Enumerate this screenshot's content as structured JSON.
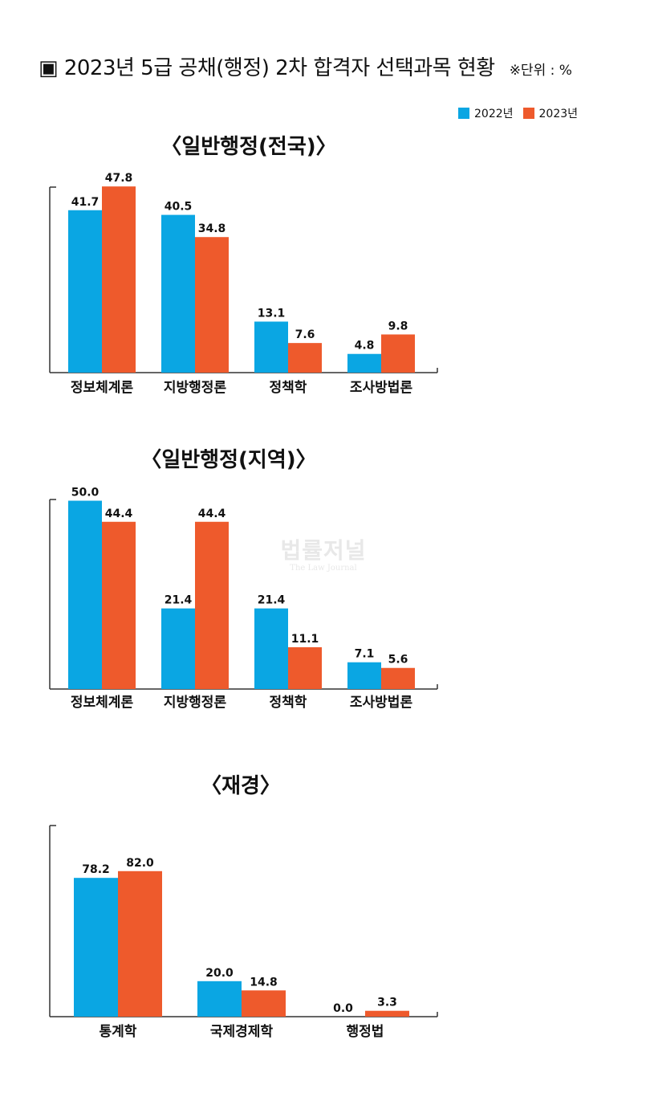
{
  "header": {
    "title": "▣ 2023년 5급 공채(행정) 2차 합격자 선택과목 현황",
    "unit": "※단위 : %"
  },
  "legend": [
    {
      "label": "2022년",
      "color": "#0aa6e3"
    },
    {
      "label": "2023년",
      "color": "#ee5a2c"
    }
  ],
  "watermark": {
    "korean": "법률저널",
    "english": "The Law Journal"
  },
  "chart_data": [
    {
      "type": "bar",
      "title": "〈일반행정(전국)〉",
      "categories": [
        "정보체계론",
        "지방행정론",
        "정책학",
        "조사방법론"
      ],
      "series": [
        {
          "name": "2022년",
          "values": [
            41.7,
            40.5,
            13.1,
            4.8
          ]
        },
        {
          "name": "2023년",
          "values": [
            47.8,
            34.8,
            7.6,
            9.8
          ]
        }
      ],
      "ylim": [
        0,
        50
      ],
      "grid": false
    },
    {
      "type": "bar",
      "title": "〈일반행정(지역)〉",
      "categories": [
        "정보체계론",
        "지방행정론",
        "정책학",
        "조사방법론"
      ],
      "series": [
        {
          "name": "2022년",
          "values": [
            50.0,
            21.4,
            21.4,
            7.1
          ]
        },
        {
          "name": "2023년",
          "values": [
            44.4,
            44.4,
            11.1,
            5.6
          ]
        }
      ],
      "ylim": [
        0,
        50
      ],
      "grid": false
    },
    {
      "type": "bar",
      "title": "〈재경〉",
      "categories": [
        "통계학",
        "국제경제학",
        "행정법"
      ],
      "series": [
        {
          "name": "2022년",
          "values": [
            78.2,
            20.0,
            0.0
          ]
        },
        {
          "name": "2023년",
          "values": [
            82.0,
            14.8,
            3.3
          ]
        }
      ],
      "ylim": [
        0,
        90
      ],
      "grid": false
    }
  ]
}
